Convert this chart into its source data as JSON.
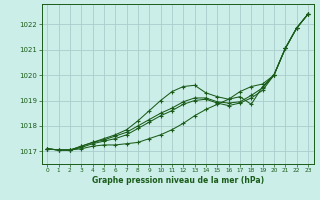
{
  "title": "Graphe pression niveau de la mer (hPa)",
  "background_color": "#cceee8",
  "grid_color": "#aacccc",
  "line_color": "#1a5c1a",
  "xlim": [
    -0.5,
    23.5
  ],
  "ylim": [
    1016.5,
    1022.8
  ],
  "yticks": [
    1017,
    1018,
    1019,
    1020,
    1021,
    1022
  ],
  "xticks": [
    0,
    1,
    2,
    3,
    4,
    5,
    6,
    7,
    8,
    9,
    10,
    11,
    12,
    13,
    14,
    15,
    16,
    17,
    18,
    19,
    20,
    21,
    22,
    23
  ],
  "series": [
    [
      1017.1,
      1017.05,
      1017.05,
      1017.1,
      1017.2,
      1017.25,
      1017.25,
      1017.3,
      1017.35,
      1017.5,
      1017.65,
      1017.85,
      1018.1,
      1018.4,
      1018.65,
      1018.85,
      1019.05,
      1019.15,
      1018.85,
      1019.55,
      1020.0,
      1021.05,
      1021.85,
      1022.4
    ],
    [
      1017.1,
      1017.05,
      1017.05,
      1017.15,
      1017.3,
      1017.4,
      1017.5,
      1017.65,
      1017.9,
      1018.15,
      1018.4,
      1018.6,
      1018.85,
      1019.0,
      1019.05,
      1018.9,
      1018.8,
      1018.9,
      1019.1,
      1019.4,
      1020.0,
      1021.05,
      1021.85,
      1022.4
    ],
    [
      1017.1,
      1017.05,
      1017.05,
      1017.2,
      1017.35,
      1017.45,
      1017.6,
      1017.75,
      1018.0,
      1018.25,
      1018.5,
      1018.7,
      1018.95,
      1019.1,
      1019.1,
      1018.95,
      1018.9,
      1018.95,
      1019.2,
      1019.5,
      1020.0,
      1021.05,
      1021.85,
      1022.4
    ],
    [
      1017.1,
      1017.05,
      1017.05,
      1017.2,
      1017.35,
      1017.5,
      1017.65,
      1017.85,
      1018.2,
      1018.6,
      1019.0,
      1019.35,
      1019.55,
      1019.6,
      1019.3,
      1019.15,
      1019.05,
      1019.35,
      1019.55,
      1019.65,
      1020.0,
      1021.05,
      1021.85,
      1022.4
    ]
  ]
}
